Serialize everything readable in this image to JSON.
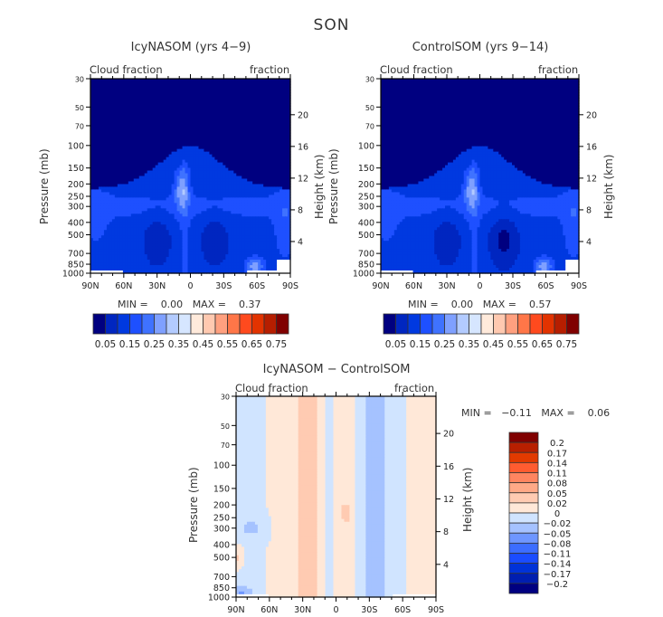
{
  "figure": {
    "title": "SON"
  },
  "colors": {
    "levels_15": [
      "#000080",
      "#0026c0",
      "#0039e0",
      "#1e50ff",
      "#3f72ff",
      "#7fa0ff",
      "#b3cbff",
      "#d6e6ff",
      "#ffeadb",
      "#ffc9b0",
      "#ffa07f",
      "#ff7648",
      "#ff4a1e",
      "#e23300",
      "#b61e00",
      "#800000"
    ],
    "diff_levels": [
      "#000080",
      "#001eb0",
      "#0032d8",
      "#1a4cff",
      "#3c6dff",
      "#6e96ff",
      "#a5c2ff",
      "#d0e4ff",
      "#ffe8d8",
      "#ffcbb2",
      "#ffa987",
      "#ff8560",
      "#ff5c30",
      "#e23a00",
      "#b81f00",
      "#800000"
    ]
  },
  "chart_data": [
    {
      "id": "icy",
      "type": "heatmap",
      "title": "IcyNASOM (yrs 4−9)",
      "left_label": "Cloud fraction",
      "right_label": "fraction",
      "ylabel": "Pressure (mb)",
      "ylabel_right": "Height (km)",
      "x_ticks": [
        "90N",
        "60N",
        "30N",
        "0",
        "30S",
        "60S",
        "90S"
      ],
      "x_range": [
        90,
        -90
      ],
      "y_ticks": [
        "30",
        "50",
        "70",
        "100",
        "150",
        "200",
        "250",
        "300",
        "400",
        "500",
        "700",
        "850",
        "1000"
      ],
      "y_ticks_values": [
        30,
        50,
        70,
        100,
        150,
        200,
        250,
        300,
        400,
        500,
        700,
        850,
        1000
      ],
      "y_range": [
        30,
        1000
      ],
      "y_scale": "log",
      "height_ticks": [
        "20",
        "16",
        "12",
        "8",
        "4"
      ],
      "height_values_km": [
        20,
        16,
        12,
        8,
        4
      ],
      "min_label": "MIN =",
      "min_value": "0.00",
      "max_label": "MAX =",
      "max_value": "0.37",
      "colorbar_labels": [
        "0.05",
        "0.15",
        "0.25",
        "0.35",
        "0.45",
        "0.55",
        "0.65",
        "0.75"
      ],
      "colorbar_levels": [
        0.05,
        0.1,
        0.15,
        0.2,
        0.25,
        0.3,
        0.35,
        0.4,
        0.45,
        0.5,
        0.55,
        0.6,
        0.65,
        0.7,
        0.75
      ]
    },
    {
      "id": "control",
      "type": "heatmap",
      "title": "ControlSOM (yrs 9−14)",
      "left_label": "Cloud fraction",
      "right_label": "fraction",
      "ylabel": "Pressure (mb)",
      "ylabel_right": "Height (km)",
      "x_ticks": [
        "90N",
        "60N",
        "30N",
        "0",
        "30S",
        "60S",
        "90S"
      ],
      "x_range": [
        90,
        -90
      ],
      "y_ticks": [
        "30",
        "50",
        "70",
        "100",
        "150",
        "200",
        "250",
        "300",
        "400",
        "500",
        "700",
        "850",
        "1000"
      ],
      "y_ticks_values": [
        30,
        50,
        70,
        100,
        150,
        200,
        250,
        300,
        400,
        500,
        700,
        850,
        1000
      ],
      "y_range": [
        30,
        1000
      ],
      "y_scale": "log",
      "height_ticks": [
        "20",
        "16",
        "12",
        "8",
        "4"
      ],
      "height_values_km": [
        20,
        16,
        12,
        8,
        4
      ],
      "min_label": "MIN =",
      "min_value": "0.00",
      "max_label": "MAX =",
      "max_value": "0.57",
      "colorbar_labels": [
        "0.05",
        "0.15",
        "0.25",
        "0.35",
        "0.45",
        "0.55",
        "0.65",
        "0.75"
      ],
      "colorbar_levels": [
        0.05,
        0.1,
        0.15,
        0.2,
        0.25,
        0.3,
        0.35,
        0.4,
        0.45,
        0.5,
        0.55,
        0.6,
        0.65,
        0.7,
        0.75
      ]
    },
    {
      "id": "diff",
      "type": "heatmap",
      "title": "IcyNASOM − ControlSOM",
      "left_label": "Cloud fraction",
      "right_label": "fraction",
      "ylabel": "Pressure (mb)",
      "ylabel_right": "Height (km)",
      "x_ticks": [
        "90N",
        "60N",
        "30N",
        "0",
        "30S",
        "60S",
        "90S"
      ],
      "x_range": [
        90,
        -90
      ],
      "y_ticks": [
        "30",
        "50",
        "70",
        "100",
        "150",
        "200",
        "250",
        "300",
        "400",
        "500",
        "700",
        "850",
        "1000"
      ],
      "y_ticks_values": [
        30,
        50,
        70,
        100,
        150,
        200,
        250,
        300,
        400,
        500,
        700,
        850,
        1000
      ],
      "y_range": [
        30,
        1000
      ],
      "y_scale": "log",
      "height_ticks": [
        "20",
        "16",
        "12",
        "8",
        "4"
      ],
      "height_values_km": [
        20,
        16,
        12,
        8,
        4
      ],
      "min_label": "MIN =",
      "min_value": "−0.11",
      "max_label": "MAX =",
      "max_value": "0.06",
      "colorbar_labels": [
        "0.2",
        "0.17",
        "0.14",
        "0.11",
        "0.08",
        "0.05",
        "0.02",
        "0",
        "−0.02",
        "−0.05",
        "−0.08",
        "−0.11",
        "−0.14",
        "−0.17",
        "−0.2"
      ],
      "colorbar_levels": [
        -0.2,
        -0.17,
        -0.14,
        -0.11,
        -0.08,
        -0.05,
        -0.02,
        0,
        0.02,
        0.05,
        0.08,
        0.11,
        0.14,
        0.17,
        0.2
      ]
    }
  ]
}
